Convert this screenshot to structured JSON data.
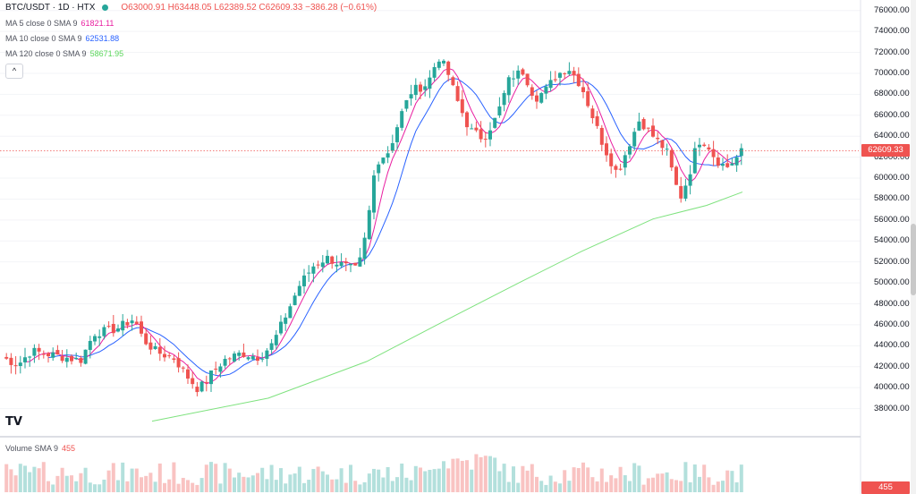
{
  "header": {
    "symbol": "BTC/USDT · 1D · HTX",
    "ohlc": "O63000.91 H63448.05 L62389.52 C62609.33 −386.28 (−0.61%)"
  },
  "indicators": [
    {
      "label": "MA 5 close 0 SMA 9",
      "value": "61821.11",
      "color": "#e91ea0"
    },
    {
      "label": "MA 10 close 0 SMA 9",
      "value": "62531.88",
      "color": "#2962ff"
    },
    {
      "label": "MA 120 close 0 SMA 9",
      "value": "58671.95",
      "color": "#5bd65b"
    }
  ],
  "collapse_label": "^",
  "volume": {
    "label": "Volume SMA 9",
    "value": "455"
  },
  "logo": "TV",
  "price_axis": {
    "ticks": [
      "76000.00",
      "74000.00",
      "72000.00",
      "70000.00",
      "68000.00",
      "66000.00",
      "64000.00",
      "62000.00",
      "60000.00",
      "58000.00",
      "56000.00",
      "54000.00",
      "52000.00",
      "50000.00",
      "48000.00",
      "46000.00",
      "44000.00",
      "42000.00",
      "40000.00",
      "38000.00"
    ],
    "last_price": "62609.33",
    "volume_tag": "455"
  },
  "colors": {
    "up": "#26a69a",
    "down": "#ef5350",
    "bg": "#ffffff"
  },
  "chart_data": {
    "type": "candlestick",
    "ylim": [
      36000,
      77000
    ],
    "tick_values": [
      76000,
      74000,
      72000,
      70000,
      68000,
      66000,
      64000,
      62000,
      60000,
      58000,
      56000,
      54000,
      52000,
      50000,
      48000,
      46000,
      44000,
      42000,
      40000,
      38000
    ],
    "last": 62609.33,
    "ma120": [
      [
        170,
        36800
      ],
      [
        300,
        39000
      ],
      [
        410,
        42500
      ],
      [
        500,
        46500
      ],
      [
        580,
        50000
      ],
      [
        650,
        53000
      ],
      [
        730,
        56100
      ],
      [
        790,
        57400
      ],
      [
        830,
        58671.95
      ]
    ]
  }
}
